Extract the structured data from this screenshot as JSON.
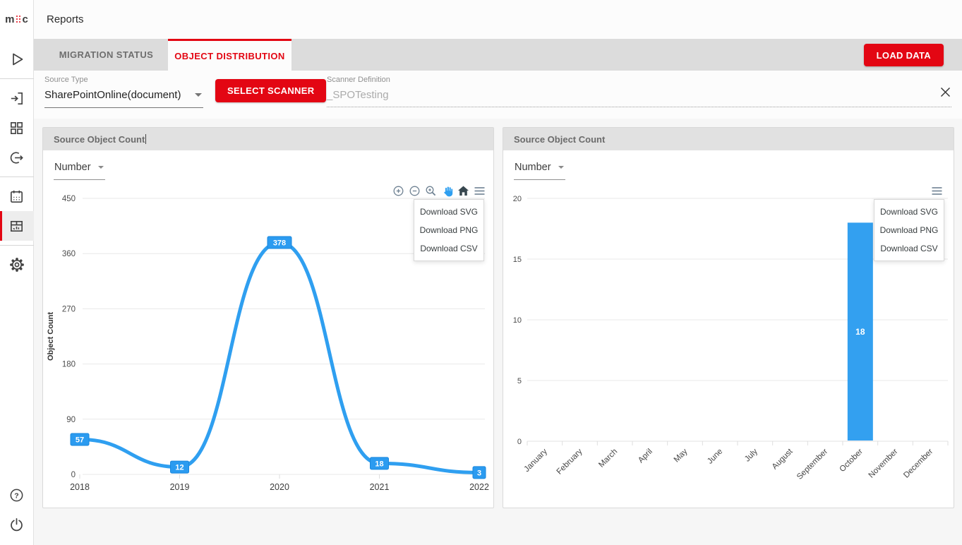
{
  "app": {
    "logo_left": "m",
    "logo_right": "c",
    "title": "Reports"
  },
  "tabs": [
    {
      "label": "MIGRATION STATUS",
      "active": false
    },
    {
      "label": "OBJECT DISTRIBUTION",
      "active": true
    }
  ],
  "toolbar": {
    "load_data_label": "LOAD DATA"
  },
  "filters": {
    "source_type_label": "Source Type",
    "source_type_value": "SharePointOnline(document)",
    "select_scanner_label": "SELECT SCANNER",
    "scanner_definition_label": "Scanner Definition",
    "scanner_definition_value": "_SPOTesting"
  },
  "panels": {
    "left": {
      "title": "Source Object Count",
      "series_selector": "Number",
      "menu": [
        "Download SVG",
        "Download PNG",
        "Download CSV"
      ]
    },
    "right": {
      "title": "Source Object Count",
      "series_selector": "Number",
      "menu": [
        "Download SVG",
        "Download PNG",
        "Download CSV"
      ]
    }
  },
  "chart_data": [
    {
      "id": "line-chart",
      "type": "line",
      "title": "Source Object Count",
      "categories": [
        "2018",
        "2019",
        "2020",
        "2021",
        "2022"
      ],
      "values": [
        57,
        12,
        378,
        18,
        3
      ],
      "xlabel": "",
      "ylabel": "Object Count",
      "ylim": [
        0,
        450
      ],
      "yticks": [
        0,
        90,
        180,
        270,
        360,
        450
      ],
      "grid": true,
      "legend": "none",
      "line_color": "#2f9ff0",
      "label_box_color": "#2b9bf0",
      "label_box_border": "#1a87dd"
    },
    {
      "id": "bar-chart",
      "type": "bar",
      "title": "Source Object Count",
      "categories": [
        "January",
        "February",
        "March",
        "April",
        "May",
        "June",
        "July",
        "August",
        "September",
        "October",
        "November",
        "December"
      ],
      "values": [
        0,
        0,
        0,
        0,
        0,
        0,
        0,
        0,
        0,
        18,
        0,
        0
      ],
      "xlabel": "",
      "ylabel": "",
      "ylim": [
        0,
        20
      ],
      "yticks": [
        0,
        5,
        10,
        15,
        20
      ],
      "grid": true,
      "legend": "none",
      "bar_color": "#33a0f0",
      "data_label_color": "#ffffff"
    }
  ]
}
